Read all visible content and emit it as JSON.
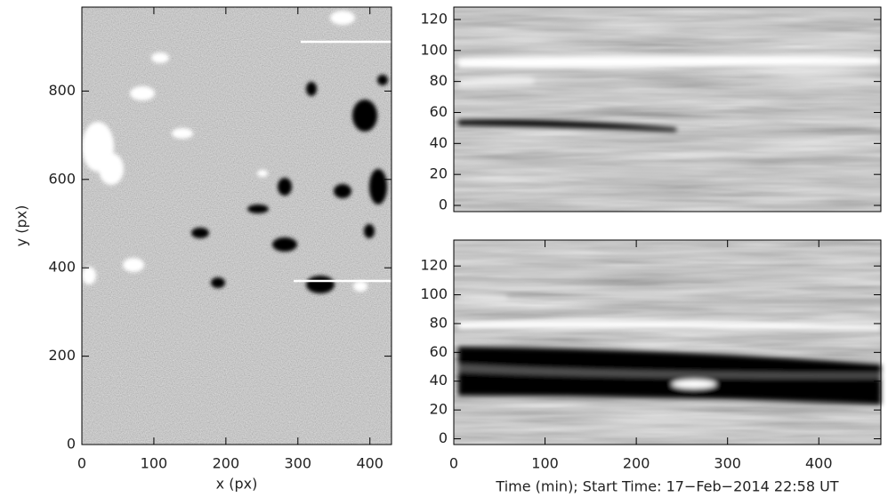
{
  "chart_data": [
    {
      "type": "image",
      "xlabel": "x (px)",
      "ylabel": "y (px)",
      "xlim": [
        0,
        430
      ],
      "ylim": [
        0,
        990
      ],
      "xticks": [
        0,
        100,
        200,
        300,
        400
      ],
      "yticks": [
        0,
        200,
        400,
        600,
        800
      ]
    },
    {
      "type": "image",
      "xlim": [
        0,
        468
      ],
      "ylim": [
        -4,
        128
      ],
      "yticks": [
        0,
        20,
        40,
        60,
        80,
        100,
        120
      ]
    },
    {
      "type": "image",
      "xlabel": "Time (min); Start Time: 17−Feb−2014 22:58 UT",
      "xlim": [
        0,
        468
      ],
      "ylim": [
        -4,
        138
      ],
      "xticks": [
        0,
        100,
        200,
        300,
        400
      ],
      "yticks": [
        0,
        20,
        40,
        60,
        80,
        100,
        120
      ]
    }
  ]
}
